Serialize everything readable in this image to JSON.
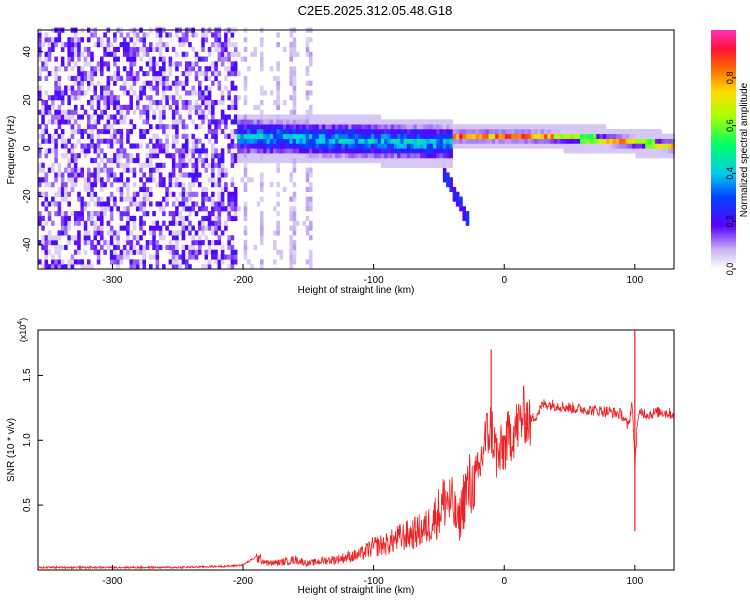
{
  "title": "C2E5.2025.312.05.48.G18",
  "chart_data": [
    {
      "type": "heatmap",
      "xlabel": "Height of straight line (km)",
      "ylabel": "Frequency (Hz)",
      "xlim": [
        -357,
        130
      ],
      "ylim": [
        -50,
        49
      ],
      "x_ticks": [
        -300,
        -200,
        -100,
        0,
        100
      ],
      "y_ticks": [
        -40,
        -20,
        0,
        20,
        40
      ],
      "colorbar": {
        "label": "Normalized spectral amplitude",
        "range": [
          0,
          1
        ],
        "ticks": [
          0.0,
          0.2,
          0.4,
          0.6,
          0.8
        ],
        "colormap": "rainbow (magenta at 1.0 to white at 0.0)"
      },
      "regions": [
        {
          "x_range": [
            -357,
            -205
          ],
          "freq_range": [
            -50,
            49
          ],
          "amplitude": 0.15,
          "note": "broadband noise"
        },
        {
          "x_range": [
            -205,
            -145
          ],
          "freq_range": [
            -50,
            49
          ],
          "amplitude": 0.05,
          "note": "sparse noise streaks"
        },
        {
          "x_range": [
            -205,
            -40
          ],
          "center_freq": [
            4,
            3,
            2,
            1,
            0
          ],
          "width_hz": 14,
          "amplitude": 0.35
        },
        {
          "x_range": [
            -40,
            130
          ],
          "center_freq": [
            4,
            5,
            4,
            3,
            1,
            -1
          ],
          "width_hz": 4,
          "amplitude": 0.85
        },
        {
          "x_range": [
            -45,
            -30
          ],
          "freq_range": [
            -32,
            -10
          ],
          "amplitude": 0.2,
          "note": "descending branch"
        }
      ]
    },
    {
      "type": "line",
      "xlabel": "Height of straight line (km)",
      "ylabel": "SNR (10 * v/v)",
      "y_multiplier": "(x10",
      "y_multiplier_exp": "4",
      "y_multiplier_close": ")",
      "xlim": [
        -357,
        130
      ],
      "ylim": [
        0,
        1.85
      ],
      "x_ticks": [
        -300,
        -200,
        -100,
        0,
        100
      ],
      "y_ticks": [
        0.5,
        1.0,
        1.5
      ],
      "y_tick_labels": [
        "0.5",
        "1.0",
        "1.5"
      ],
      "color": "#ee2222",
      "series": [
        {
          "x": [
            -357,
            -300,
            -250,
            -210,
            -200,
            -190,
            -180,
            -170,
            -160,
            -150,
            -140,
            -130,
            -120,
            -110,
            -100,
            -90,
            -80,
            -70,
            -60,
            -50,
            -45,
            -40,
            -35,
            -30,
            -25,
            -20,
            -15,
            -10,
            -5,
            0,
            5,
            10,
            15,
            20,
            25,
            30,
            40,
            50,
            60,
            70,
            80,
            90,
            95,
            98,
            100,
            102,
            105,
            110,
            120,
            130
          ],
          "y": [
            0.02,
            0.02,
            0.02,
            0.03,
            0.04,
            0.1,
            0.05,
            0.06,
            0.08,
            0.05,
            0.07,
            0.08,
            0.1,
            0.12,
            0.18,
            0.2,
            0.25,
            0.28,
            0.32,
            0.45,
            0.55,
            0.5,
            0.35,
            0.6,
            0.65,
            0.7,
            1.0,
            1.1,
            0.85,
            0.95,
            1.05,
            1.1,
            1.2,
            1.15,
            1.2,
            1.28,
            1.27,
            1.25,
            1.24,
            1.23,
            1.22,
            1.2,
            1.1,
            1.3,
            0.8,
            1.15,
            1.22,
            1.2,
            1.22,
            1.2
          ]
        }
      ],
      "spikes": [
        {
          "x": -10,
          "y": 1.7
        },
        {
          "x": 100,
          "y": 1.85
        },
        {
          "x": 100,
          "y": 0.3
        }
      ]
    }
  ]
}
